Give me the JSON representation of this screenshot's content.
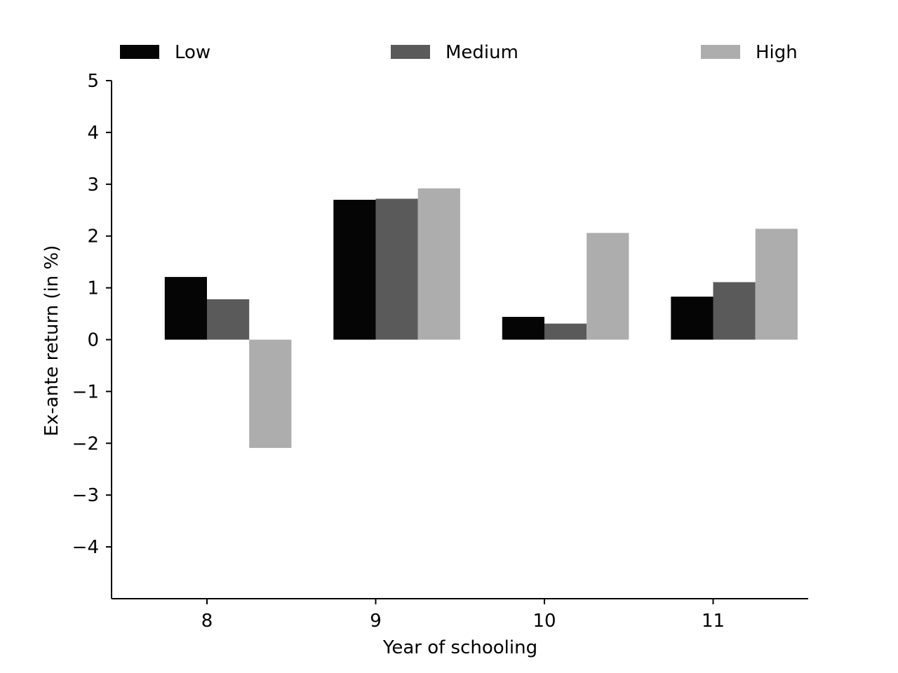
{
  "chart_data": {
    "type": "bar",
    "categories": [
      "8",
      "9",
      "10",
      "11"
    ],
    "series": [
      {
        "name": "Low",
        "values": [
          1.21,
          2.7,
          0.44,
          0.83
        ],
        "color": "#050505"
      },
      {
        "name": "Medium",
        "values": [
          0.78,
          2.72,
          0.31,
          1.11
        ],
        "color": "#5a5a5a"
      },
      {
        "name": "High",
        "values": [
          -2.09,
          2.92,
          2.06,
          2.14
        ],
        "color": "#adadad"
      }
    ],
    "xlabel": "Year of schooling",
    "ylabel": "Ex-ante return (in %)",
    "ylim": [
      -5,
      5
    ],
    "yticks": [
      -4,
      -3,
      -2,
      -1,
      0,
      1,
      2,
      3,
      4,
      5
    ],
    "ytick_labels": [
      "−4",
      "−3",
      "−2",
      "−1",
      "0",
      "1",
      "2",
      "3",
      "4",
      "5"
    ],
    "grid": false,
    "legend_position": "top"
  }
}
